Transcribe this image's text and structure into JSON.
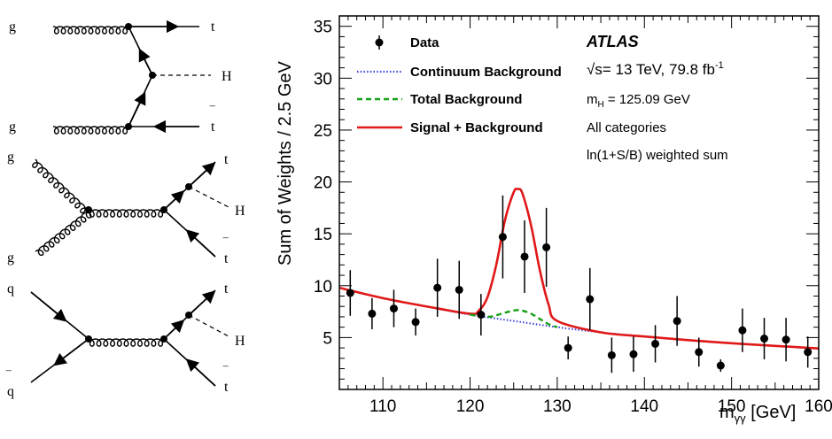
{
  "diagrams": [
    {
      "name": "gluon-fusion-tth",
      "labels": {
        "g_top": "g",
        "g_bottom": "g",
        "t": "t",
        "H": "H",
        "tbar_t": "t",
        "tbar_bar": "‾"
      }
    },
    {
      "name": "gg-to-tth",
      "labels": {
        "g_top": "g",
        "g_bottom": "g",
        "t": "t",
        "H": "H",
        "tbar_t": "t",
        "tbar_bar": "‾"
      }
    },
    {
      "name": "qq-to-tth",
      "labels": {
        "q_top": "q",
        "q_bottom": "q",
        "qbar_bar": "‾",
        "t": "t",
        "H": "H",
        "tbar_t": "t",
        "tbar_bar": "‾"
      }
    }
  ],
  "legend": {
    "data": "Data",
    "continuum": "Continuum Background",
    "total": "Total Background",
    "signal": "Signal + Background"
  },
  "info": {
    "experiment": "ATLAS",
    "energy_sqrt": "√s",
    "energy_text": "= 13 TeV, 79.8 fb",
    "energy_sup": "-1",
    "mass_m": "m",
    "mass_sub": "H",
    "mass_val": "= 125.09 GeV",
    "categories": "All categories",
    "weighting": "ln(1+S/B) weighted sum"
  },
  "chart_data": {
    "type": "scatter",
    "title": "",
    "xlabel": "m",
    "xlabel_sub": "γγ",
    "xlabel_unit": "[GeV]",
    "ylabel": "Sum of Weights  /  2.5 GeV",
    "xlim": [
      105,
      160
    ],
    "ylim": [
      0,
      36
    ],
    "xticks": [
      110,
      120,
      130,
      140,
      150,
      160
    ],
    "yticks": [
      5,
      10,
      15,
      20,
      25,
      30,
      35
    ],
    "legend_position": "top-left",
    "colors": {
      "data": "#000000",
      "continuum": "#3a44d8",
      "total": "#16a016",
      "signal": "#e01818"
    },
    "series": [
      {
        "name": "Data",
        "x": [
          106.25,
          108.75,
          111.25,
          113.75,
          116.25,
          118.75,
          121.25,
          123.75,
          126.25,
          128.75,
          131.25,
          133.75,
          136.25,
          138.75,
          141.25,
          143.75,
          146.25,
          148.75,
          151.25,
          153.75,
          156.25,
          158.75
        ],
        "y": [
          9.3,
          7.3,
          7.8,
          6.5,
          9.8,
          9.6,
          7.2,
          14.7,
          12.8,
          13.7,
          4.0,
          8.7,
          3.3,
          3.4,
          4.4,
          6.6,
          3.6,
          2.3,
          5.7,
          4.9,
          4.8,
          3.6
        ],
        "yerr": [
          2.2,
          1.5,
          1.8,
          1.3,
          2.8,
          2.8,
          2.0,
          4.0,
          3.5,
          3.8,
          1.1,
          3.0,
          1.7,
          1.7,
          1.8,
          2.4,
          1.4,
          0.6,
          2.1,
          2.0,
          2.1,
          1.5
        ]
      },
      {
        "name": "Continuum Background",
        "x": [
          105,
          110,
          115,
          120,
          125,
          130,
          135,
          140,
          145,
          150,
          155,
          160
        ],
        "y": [
          9.8,
          8.8,
          8.0,
          7.2,
          6.6,
          6.0,
          5.5,
          5.1,
          4.75,
          4.45,
          4.2,
          3.95
        ]
      },
      {
        "name": "Total Background",
        "x": [
          120,
          122,
          123,
          124,
          125,
          125.5,
          126,
          127,
          128,
          129,
          130
        ],
        "y": [
          7.2,
          7.0,
          7.15,
          7.4,
          7.6,
          7.65,
          7.6,
          7.3,
          6.8,
          6.3,
          6.0
        ]
      },
      {
        "name": "Signal + Background",
        "x": [
          105,
          110,
          115,
          120,
          121,
          122,
          123,
          124,
          125,
          125.5,
          126,
          127,
          128,
          129,
          130,
          135,
          140,
          145,
          150,
          155,
          160
        ],
        "y": [
          9.8,
          8.8,
          8.0,
          7.3,
          7.6,
          8.9,
          12.0,
          16.3,
          19.0,
          19.3,
          18.9,
          15.8,
          11.5,
          8.2,
          6.6,
          5.5,
          5.1,
          4.75,
          4.45,
          4.2,
          3.95
        ]
      }
    ]
  }
}
